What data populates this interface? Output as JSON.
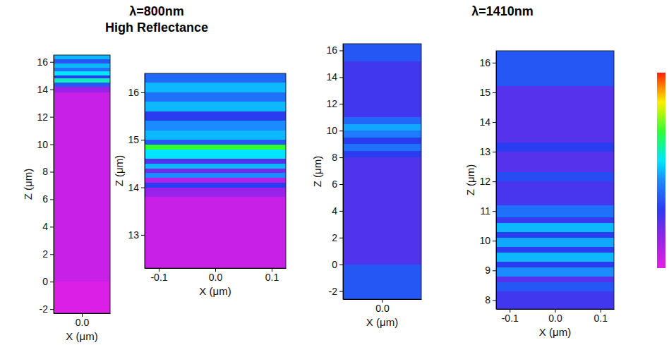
{
  "chart_data": [
    {
      "type": "heatmap",
      "title": "λ=800nm",
      "subtitle": "High Reflectance",
      "xlabel": "X (μm)",
      "ylabel": "Z (μm)",
      "xlim": [
        -0.12,
        0.12
      ],
      "ylim": [
        -2.3,
        16.5
      ],
      "xticks": [
        {
          "value": 0,
          "label": "0.0"
        }
      ],
      "yticks": [
        -2,
        0,
        2,
        4,
        6,
        8,
        10,
        12,
        14,
        16
      ],
      "cells": {
        "z_edges": [
          -2.3,
          0,
          13.8,
          14.2,
          14.5,
          14.8,
          15.0,
          15.3,
          15.6,
          15.9,
          16.2,
          16.5
        ],
        "values": [
          0.02,
          0.06,
          0.15,
          0.35,
          0.6,
          0.3,
          0.55,
          0.4,
          0.5,
          0.35,
          0.5
        ]
      }
    },
    {
      "type": "heatmap",
      "xlabel": "X (μm)",
      "ylabel": "Z (μm)",
      "xlim": [
        -0.125,
        0.125
      ],
      "ylim": [
        12.3,
        16.4
      ],
      "xticks": [
        -0.1,
        {
          "value": 0,
          "label": "0.0"
        },
        0.1
      ],
      "yticks": [
        13,
        14,
        15,
        16
      ],
      "cells": {
        "z_edges": [
          12.3,
          13.8,
          14.0,
          14.1,
          14.2,
          14.3,
          14.4,
          14.5,
          14.6,
          14.8,
          14.9,
          15.0,
          15.2,
          15.4,
          15.6,
          15.8,
          16.0,
          16.2,
          16.4
        ],
        "values": [
          0.06,
          0.15,
          0.3,
          0.1,
          0.45,
          0.2,
          0.5,
          0.25,
          0.55,
          0.7,
          0.35,
          0.5,
          0.45,
          0.3,
          0.5,
          0.4,
          0.5,
          0.38
        ]
      }
    },
    {
      "type": "heatmap",
      "title": "λ=1410nm",
      "xlabel": "X (μm)",
      "ylabel": "Z (μm)",
      "xlim": [
        -0.12,
        0.12
      ],
      "ylim": [
        -2.6,
        16.5
      ],
      "xticks": [
        {
          "value": 0,
          "label": "0.0"
        }
      ],
      "yticks": [
        -2,
        0,
        2,
        4,
        6,
        8,
        10,
        12,
        14,
        16
      ],
      "cells": {
        "z_edges": [
          -2.6,
          0,
          8,
          8.5,
          9,
          9.5,
          10,
          10.5,
          11,
          15.2,
          16.5
        ],
        "values": [
          0.35,
          0.25,
          0.3,
          0.4,
          0.3,
          0.42,
          0.48,
          0.38,
          0.27,
          0.35
        ]
      }
    },
    {
      "type": "heatmap",
      "xlabel": "X (μm)",
      "ylabel": "Z (μm)",
      "xlim": [
        -0.13,
        0.13
      ],
      "ylim": [
        7.7,
        16.4
      ],
      "xticks": [
        -0.1,
        {
          "value": 0,
          "label": "0.0"
        },
        0.1
      ],
      "yticks": [
        8,
        9,
        10,
        11,
        12,
        13,
        14,
        15,
        16
      ],
      "cells": {
        "z_edges": [
          7.7,
          8.3,
          8.6,
          8.8,
          9.1,
          9.3,
          9.6,
          9.8,
          10.1,
          10.3,
          10.6,
          10.8,
          11.2,
          12,
          12.3,
          13,
          13.3,
          15.2,
          16.4
        ],
        "values": [
          0.27,
          0.35,
          0.24,
          0.45,
          0.3,
          0.5,
          0.3,
          0.48,
          0.3,
          0.5,
          0.28,
          0.4,
          0.26,
          0.33,
          0.24,
          0.3,
          0.24,
          0.35
        ]
      },
      "colorbar": {
        "range": [
          0,
          1
        ]
      }
    }
  ]
}
